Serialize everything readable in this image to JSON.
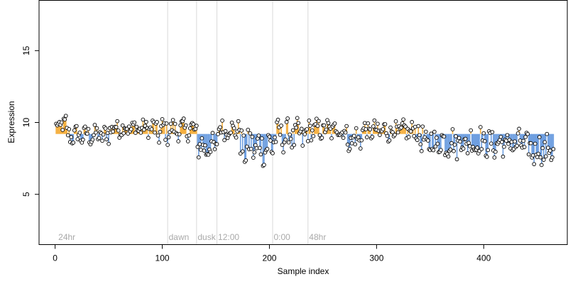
{
  "chart_data": {
    "type": "scatter",
    "title": "",
    "xlabel": "Sample index",
    "ylabel": "Expression",
    "xlim": [
      -15,
      478
    ],
    "ylim": [
      1.5,
      18.5
    ],
    "xticks": [
      0,
      100,
      200,
      300,
      400
    ],
    "yticks": [
      5,
      10,
      15
    ],
    "grid": false,
    "legend": "none",
    "colors": {
      "above_mean": "#f5b041",
      "below_mean": "#6f9fe0",
      "point_fill": "#ffffff",
      "point_stroke": "#000000",
      "divider": "#d9d9d9",
      "period_text": "#a9a9a9"
    },
    "baseline": 9.2,
    "period_labels": [
      {
        "x": 3,
        "text": "24hr"
      },
      {
        "x": 106,
        "text": "dawn"
      },
      {
        "x": 133,
        "text": "dusk"
      },
      {
        "x": 152,
        "text": "12:00"
      },
      {
        "x": 204,
        "text": "0:00"
      },
      {
        "x": 237,
        "text": "48hr"
      }
    ],
    "dividers": [
      105,
      132,
      151,
      203,
      236
    ],
    "segments": [
      {
        "start": 1,
        "end": 5,
        "base": 9.8,
        "amp": 0.2
      },
      {
        "start": 6,
        "end": 10,
        "base": 10.0,
        "amp": 0.5
      },
      {
        "start": 11,
        "end": 50,
        "base": 9.1,
        "amp": 0.6
      },
      {
        "start": 51,
        "end": 90,
        "base": 9.6,
        "amp": 0.5
      },
      {
        "start": 91,
        "end": 105,
        "base": 9.4,
        "amp": 0.8
      },
      {
        "start": 106,
        "end": 132,
        "base": 9.5,
        "amp": 0.6
      },
      {
        "start": 133,
        "end": 151,
        "base": 8.3,
        "amp": 0.8
      },
      {
        "start": 152,
        "end": 172,
        "base": 9.5,
        "amp": 0.6
      },
      {
        "start": 173,
        "end": 203,
        "base": 8.3,
        "amp": 1.1
      },
      {
        "start": 204,
        "end": 236,
        "base": 9.1,
        "amp": 0.9
      },
      {
        "start": 237,
        "end": 270,
        "base": 9.5,
        "amp": 0.6
      },
      {
        "start": 271,
        "end": 285,
        "base": 8.8,
        "amp": 0.8
      },
      {
        "start": 286,
        "end": 340,
        "base": 9.4,
        "amp": 0.6
      },
      {
        "start": 341,
        "end": 400,
        "base": 8.6,
        "amp": 0.9
      },
      {
        "start": 401,
        "end": 440,
        "base": 8.5,
        "amp": 0.8
      },
      {
        "start": 441,
        "end": 465,
        "base": 8.1,
        "amp": 0.9
      }
    ]
  }
}
